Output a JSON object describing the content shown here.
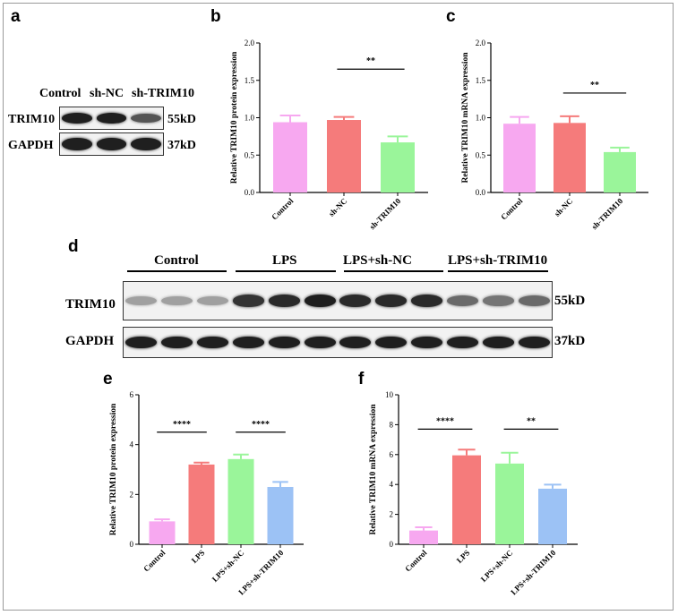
{
  "panel_labels": [
    "a",
    "b",
    "c",
    "d",
    "e",
    "f"
  ],
  "blot_a": {
    "lanes": [
      "Control",
      "sh-NC",
      "sh-TRIM10"
    ],
    "rows": [
      {
        "protein": "TRIM10",
        "size": "55kD",
        "intensities": [
          0.95,
          0.95,
          0.7
        ]
      },
      {
        "protein": "GAPDH",
        "size": "37kD",
        "intensities": [
          0.95,
          0.95,
          0.95
        ]
      }
    ]
  },
  "blot_d": {
    "groups": [
      "Control",
      "LPS",
      "LPS+sh-NC",
      "LPS+sh-TRIM10"
    ],
    "rows": [
      {
        "protein": "TRIM10",
        "size": "55kD",
        "intensities": [
          0.35,
          0.35,
          0.35,
          0.85,
          0.9,
          0.95,
          0.9,
          0.9,
          0.9,
          0.6,
          0.55,
          0.6
        ]
      },
      {
        "protein": "GAPDH",
        "size": "37kD",
        "intensities": [
          0.95,
          0.95,
          0.95,
          0.95,
          0.95,
          0.95,
          0.95,
          0.95,
          0.95,
          0.95,
          0.95,
          0.95
        ]
      }
    ]
  },
  "chart_data": [
    {
      "id": "b",
      "type": "bar",
      "ylabel": "Relative TRIM10 protein expression",
      "categories": [
        "Control",
        "sh-NC",
        "sh-TRIM10"
      ],
      "values": [
        0.94,
        0.97,
        0.67
      ],
      "errors": [
        0.09,
        0.04,
        0.08
      ],
      "colors": [
        "#f7a8f0",
        "#f57b7b",
        "#9af59a"
      ],
      "ylim": [
        0,
        2.0
      ],
      "yticks": [
        "0.0",
        "0.5",
        "1.0",
        "1.5",
        "2.0"
      ],
      "significance": [
        {
          "from": 1,
          "to": 2,
          "label": "**",
          "y": 1.65
        }
      ]
    },
    {
      "id": "c",
      "type": "bar",
      "ylabel": "Relative TRIM10 mRNA expression",
      "categories": [
        "Control",
        "sh-NC",
        "sh-TRIM10"
      ],
      "values": [
        0.92,
        0.93,
        0.54
      ],
      "errors": [
        0.09,
        0.09,
        0.06
      ],
      "colors": [
        "#f7a8f0",
        "#f57b7b",
        "#9af59a"
      ],
      "ylim": [
        0,
        2.0
      ],
      "yticks": [
        "0.0",
        "0.5",
        "1.0",
        "1.5",
        "2.0"
      ],
      "significance": [
        {
          "from": 1,
          "to": 2,
          "label": "**",
          "y": 1.33
        }
      ]
    },
    {
      "id": "e",
      "type": "bar",
      "ylabel": "Relative TRIM10 protein expression",
      "categories": [
        "Control",
        "LPS",
        "LPS+sh-NC",
        "LPS+sh-TRIM10"
      ],
      "values": [
        0.92,
        3.2,
        3.42,
        2.3
      ],
      "errors": [
        0.08,
        0.08,
        0.18,
        0.2
      ],
      "colors": [
        "#f7a8f0",
        "#f57b7b",
        "#9af59a",
        "#9cc2f5"
      ],
      "ylim": [
        0,
        6
      ],
      "yticks": [
        "0",
        "2",
        "4",
        "6"
      ],
      "significance": [
        {
          "from": 0,
          "to": 1,
          "label": "****",
          "y": 4.5
        },
        {
          "from": 2,
          "to": 3,
          "label": "****",
          "y": 4.5
        }
      ]
    },
    {
      "id": "f",
      "type": "bar",
      "ylabel": "Relative TRIM10 mRNA expression",
      "categories": [
        "Control",
        "LPS",
        "LPS+sh-NC",
        "LPS+sh-TRIM10"
      ],
      "values": [
        0.92,
        5.95,
        5.4,
        3.72
      ],
      "errors": [
        0.22,
        0.38,
        0.72,
        0.27
      ],
      "colors": [
        "#f7a8f0",
        "#f57b7b",
        "#9af59a",
        "#9cc2f5"
      ],
      "ylim": [
        0,
        10
      ],
      "yticks": [
        "0",
        "2",
        "4",
        "6",
        "8",
        "10"
      ],
      "significance": [
        {
          "from": 0,
          "to": 1,
          "label": "****",
          "y": 7.7
        },
        {
          "from": 2,
          "to": 3,
          "label": "**",
          "y": 7.7
        }
      ]
    }
  ]
}
